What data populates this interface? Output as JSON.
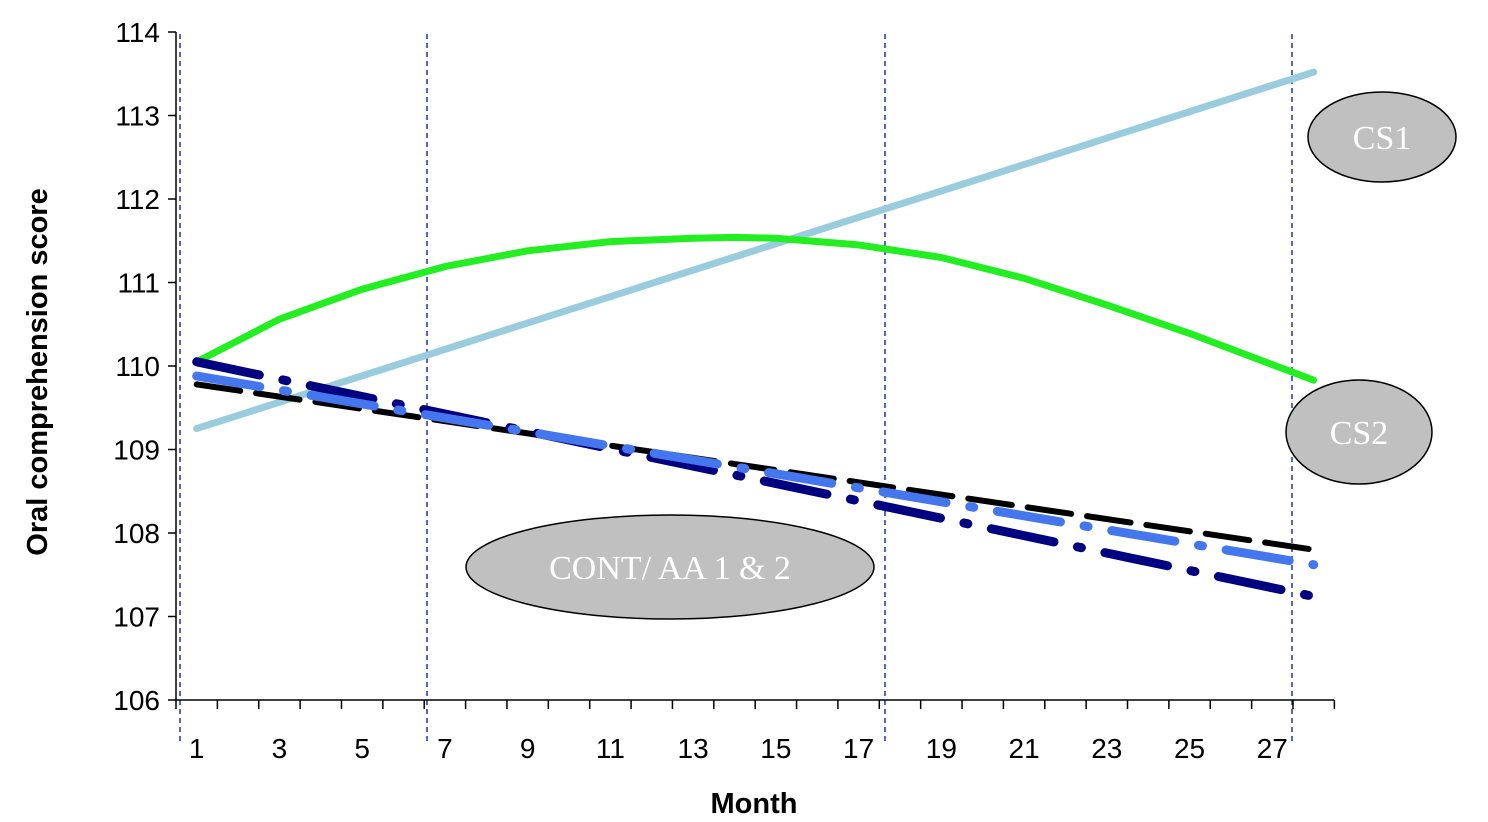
{
  "chart_data": {
    "type": "line",
    "xlabel": "Month",
    "ylabel": "Oral comprehension score",
    "xlim": [
      1,
      28
    ],
    "ylim": [
      106,
      114
    ],
    "yticks": [
      106,
      107,
      108,
      109,
      110,
      111,
      112,
      113,
      114
    ],
    "xtick_labels": [
      1,
      3,
      5,
      7,
      9,
      11,
      13,
      15,
      17,
      19,
      21,
      23,
      25,
      27
    ],
    "grid": false,
    "vertical_reference_lines": [
      1,
      6.9,
      17.6,
      27.4
    ],
    "series": [
      {
        "key": "cs1",
        "color": "#99CCDD",
        "style": "solid",
        "x": [
          1,
          28
        ],
        "y": [
          109.25,
          113.52
        ]
      },
      {
        "key": "cs2",
        "color": "#22EE22",
        "style": "solid",
        "x": [
          1,
          3,
          5,
          7,
          9,
          11,
          13,
          14,
          15,
          17,
          19,
          21,
          23,
          25,
          28
        ],
        "y": [
          110.05,
          110.56,
          110.92,
          111.19,
          111.38,
          111.49,
          111.53,
          111.54,
          111.53,
          111.45,
          111.3,
          111.05,
          110.73,
          110.39,
          109.83
        ]
      },
      {
        "key": "cont",
        "color": "#000000",
        "style": "dash",
        "x": [
          1,
          28
        ],
        "y": [
          109.78,
          107.8
        ]
      },
      {
        "key": "aa1",
        "color": "#000080",
        "style": "dashdot",
        "x": [
          1,
          28
        ],
        "y": [
          110.05,
          107.24
        ]
      },
      {
        "key": "aa2",
        "color": "#4477EE",
        "style": "dashdot",
        "x": [
          1,
          28
        ],
        "y": [
          109.88,
          107.62
        ]
      }
    ],
    "annotations": [
      {
        "key": "cs1",
        "text": "CS1",
        "x": 28.6,
        "y": 112.8
      },
      {
        "key": "cs2",
        "text": "CS2",
        "x": 28.6,
        "y": 109.25
      },
      {
        "key": "cont",
        "text": "CONT/ AA 1 & 2",
        "x": 12.9,
        "y": 107.6
      }
    ]
  }
}
